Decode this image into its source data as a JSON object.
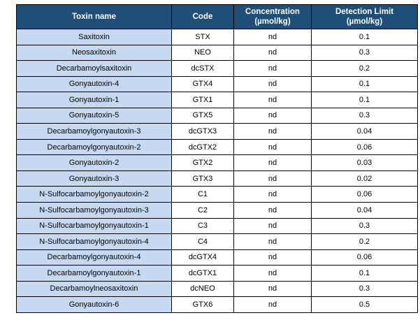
{
  "palette": {
    "header_background": "#1F4E79",
    "header_text": "#FFFFFF",
    "name_column_background": "#C6D9F1",
    "body_background": "#FFFFFF",
    "border": "#000000"
  },
  "table": {
    "columns": [
      {
        "line1": "Toxin name",
        "line2": ""
      },
      {
        "line1": "Code",
        "line2": ""
      },
      {
        "line1": "Concentration",
        "line2": "(µmol/kg)"
      },
      {
        "line1": "Detection Limit",
        "line2": "(µmol/kg)"
      }
    ],
    "rows": [
      {
        "name": "Saxitoxin",
        "code": "STX",
        "concentration": "nd",
        "detection_limit": "0.1"
      },
      {
        "name": "Neosaxitoxin",
        "code": "NEO",
        "concentration": "nd",
        "detection_limit": "0.3"
      },
      {
        "name": "Decarbamoylsaxitoxin",
        "code": "dcSTX",
        "concentration": "nd",
        "detection_limit": "0.2"
      },
      {
        "name": "Gonyautoxin-4",
        "code": "GTX4",
        "concentration": "nd",
        "detection_limit": "0.1"
      },
      {
        "name": "Gonyautoxin-1",
        "code": "GTX1",
        "concentration": "nd",
        "detection_limit": "0.1"
      },
      {
        "name": "Gonyautoxin-5",
        "code": "GTX5",
        "concentration": "nd",
        "detection_limit": "0.3"
      },
      {
        "name": "Decarbamoylgonyautoxin-3",
        "code": "dcGTX3",
        "concentration": "nd",
        "detection_limit": "0.04"
      },
      {
        "name": "Decarbamoylgonyautoxin-2",
        "code": "dcGTX2",
        "concentration": "nd",
        "detection_limit": "0.06"
      },
      {
        "name": "Gonyautoxin-2",
        "code": "GTX2",
        "concentration": "nd",
        "detection_limit": "0.03"
      },
      {
        "name": "Gonyautoxin-3",
        "code": "GTX3",
        "concentration": "nd",
        "detection_limit": "0.02"
      },
      {
        "name": "N-Sulfocarbamoylgonyautoxin-2",
        "code": "C1",
        "concentration": "nd",
        "detection_limit": "0.06"
      },
      {
        "name": "N-Sulfocarbamoylgonyautoxin-3",
        "code": "C2",
        "concentration": "nd",
        "detection_limit": "0.04"
      },
      {
        "name": "N-Sulfocarbamoylgonyautoxin-1",
        "code": "C3",
        "concentration": "nd",
        "detection_limit": "0.3"
      },
      {
        "name": "N-Sulfocarbamoylgonyautoxin-4",
        "code": "C4",
        "concentration": "nd",
        "detection_limit": "0.2"
      },
      {
        "name": "Decarbamoylgonyautoxin-4",
        "code": "dcGTX4",
        "concentration": "nd",
        "detection_limit": "0.06"
      },
      {
        "name": "Decarbamoylgonyautoxin-1",
        "code": "dcGTX1",
        "concentration": "nd",
        "detection_limit": "0.1"
      },
      {
        "name": "Decarbamoylneosaxitoxin",
        "code": "dcNEO",
        "concentration": "nd",
        "detection_limit": "0.3"
      },
      {
        "name": "Gonyautoxin-6",
        "code": "GTX6",
        "concentration": "nd",
        "detection_limit": "0.5"
      }
    ]
  }
}
